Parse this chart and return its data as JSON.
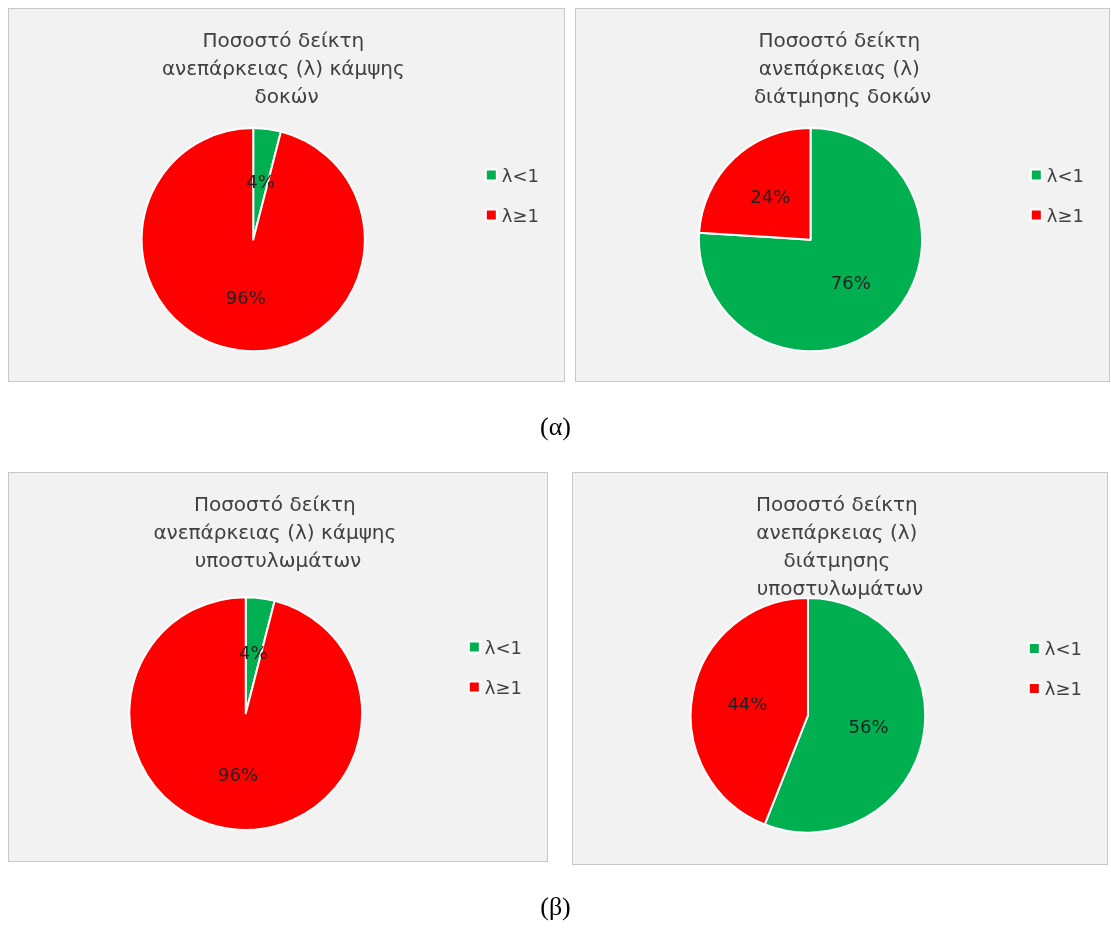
{
  "chart_data": [
    {
      "type": "pie",
      "title": "Ποσοστό δείκτη ανεπάρκειας (λ) κάμψης δοκών",
      "categories": [
        "λ<1",
        "λ≥1"
      ],
      "values": [
        4,
        96
      ],
      "value_labels": [
        "4%",
        "96%"
      ],
      "colors": [
        "#00b050",
        "#ff0000"
      ],
      "legend": "right",
      "annotations": [
        "(α)"
      ]
    },
    {
      "type": "pie",
      "title": "Ποσοστό δείκτη ανεπάρκειας (λ) διάτμησης δοκών",
      "categories": [
        "λ<1",
        "λ≥1"
      ],
      "values": [
        76,
        24
      ],
      "value_labels": [
        "76%",
        "24%"
      ],
      "colors": [
        "#00b050",
        "#ff0000"
      ],
      "legend": "right"
    },
    {
      "type": "pie",
      "title": "Ποσοστό δείκτη ανεπάρκειας (λ) κάμψης υποστυλωμάτων",
      "categories": [
        "λ<1",
        "λ≥1"
      ],
      "values": [
        4,
        96
      ],
      "value_labels": [
        "4%",
        "96%"
      ],
      "colors": [
        "#00b050",
        "#ff0000"
      ],
      "legend": "right",
      "annotations": [
        "(β)"
      ]
    },
    {
      "type": "pie",
      "title": "Ποσοστό δείκτη ανεπάρκειας (λ) διάτμησης υποστυλωμάτων",
      "categories": [
        "λ<1",
        "λ≥1"
      ],
      "values": [
        56,
        44
      ],
      "value_labels": [
        "56%",
        "44%"
      ],
      "colors": [
        "#00b050",
        "#ff0000"
      ],
      "legend": "right"
    }
  ]
}
